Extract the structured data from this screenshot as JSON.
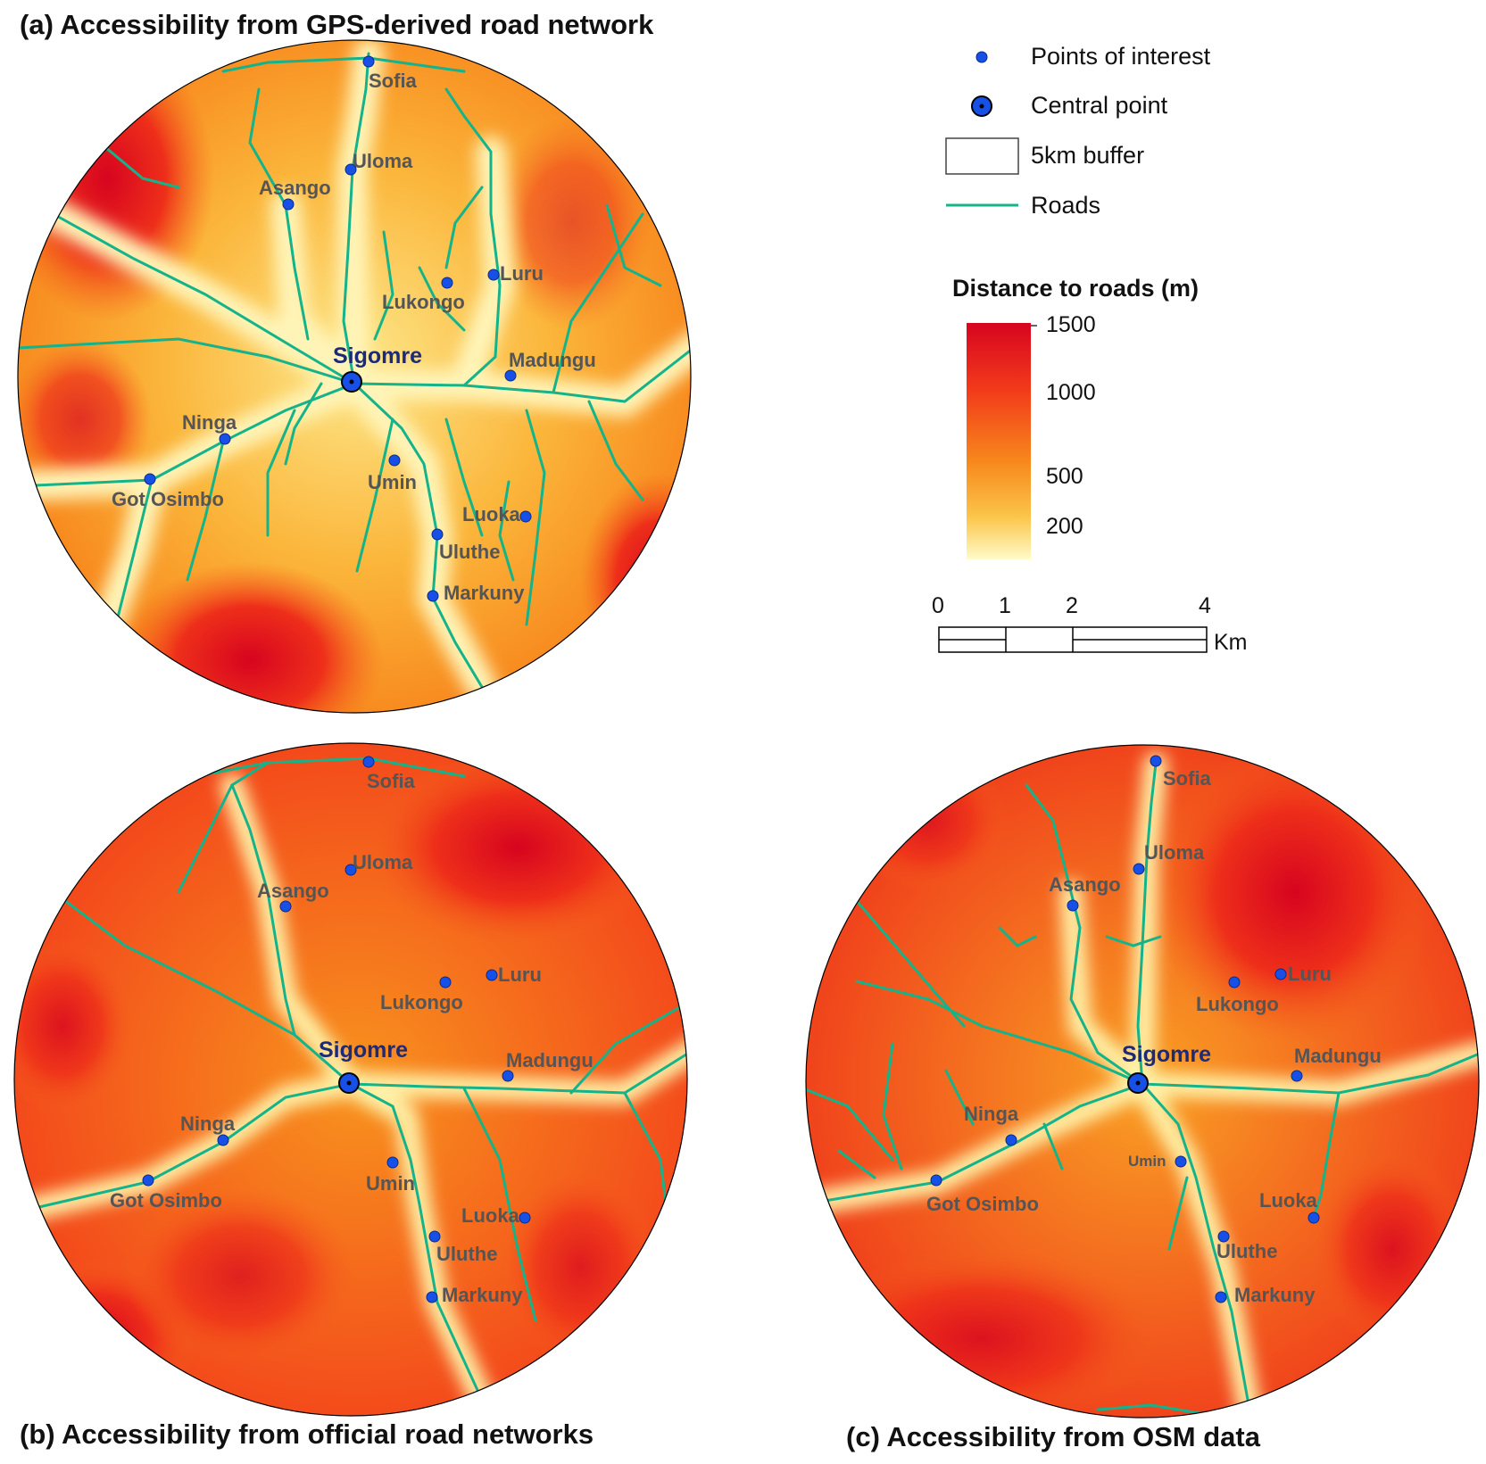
{
  "panels": {
    "a": {
      "title": "(a) Accessibility from GPS-derived road network"
    },
    "b": {
      "title": "(b) Accessibility from official road networks"
    },
    "c": {
      "title": "(c) Accessibility from OSM data"
    }
  },
  "places": {
    "central": "Sigomre",
    "sofia": "Sofia",
    "uloma": "Uloma",
    "asango": "Asango",
    "luru": "Luru",
    "lukongo": "Lukongo",
    "madungu": "Madungu",
    "ninga": "Ninga",
    "got_osimbo": "Got Osimbo",
    "umin": "Umin",
    "luoka": "Luoka",
    "uluthe": "Uluthe",
    "markuny": "Markuny"
  },
  "legend": {
    "points_of_interest": "Points of interest",
    "central_point": "Central point",
    "buffer": "5km buffer",
    "roads": "Roads"
  },
  "colorbar": {
    "title": "Distance to roads (m)",
    "ticks": [
      "1500",
      "1000",
      "500",
      "200"
    ],
    "colors": {
      "high": "#d7041f",
      "mid_high": "#f23a1b",
      "mid": "#f7861c",
      "low": "#fffbc8"
    }
  },
  "scalebar": {
    "ticks": [
      "0",
      "1",
      "2",
      "4"
    ],
    "unit": "Km"
  },
  "colors": {
    "road": "#14b38a",
    "point": "#1750e6",
    "label": "#555555",
    "central_label": "#1c2a7a"
  }
}
